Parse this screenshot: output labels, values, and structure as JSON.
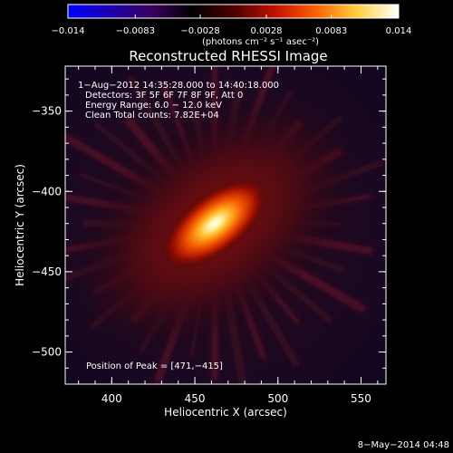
{
  "chart_data": {
    "type": "heatmap",
    "title": "Reconstructed RHESSI Image",
    "xlabel": "Heliocentric X (arcsec)",
    "ylabel": "Heliocentric Y (arcsec)",
    "xlim": [
      372,
      565
    ],
    "ylim": [
      -520,
      -322
    ],
    "x_ticks": [
      400,
      450,
      500,
      550
    ],
    "y_ticks": [
      -350,
      -400,
      -450,
      -500
    ],
    "x_tick_labels": [
      "400",
      "450",
      "500",
      "550"
    ],
    "y_tick_labels": [
      "−350",
      "−400",
      "−450",
      "−500"
    ],
    "colorbar": {
      "range": [
        -0.014,
        0.014
      ],
      "ticks": [
        -0.014,
        -0.0083,
        -0.0028,
        0.0028,
        0.0083,
        0.014
      ],
      "tick_labels": [
        "−0.014",
        "−0.0083",
        "−0.0028",
        "0.0028",
        "0.0083",
        "0.014"
      ],
      "label": "(photons cm⁻² s⁻¹ asec⁻²)",
      "colors": [
        "#0000ff",
        "#1a00b0",
        "#3b0060",
        "#000000",
        "#4a0000",
        "#c01000",
        "#ff6000",
        "#ffd040",
        "#ffffff"
      ]
    },
    "annotations": [
      "1−Aug−2012 14:35:28.000 to 14:40:18.000",
      "Detectors: 3F 5F 6F 7F 8F 9F, Att 0",
      "Energy Range: 6.0 − 12.0 keV",
      "Clean     Total counts: 7.82E+04"
    ],
    "peak_label": "Position of Peak = [471,−415]",
    "peak": {
      "x": 471,
      "y": -415,
      "value": 0.014
    },
    "source": {
      "center_x": 462,
      "center_y": -420,
      "major_arcsec": 62,
      "minor_arcsec": 30,
      "angle_deg": 38
    },
    "grid": false,
    "legend": "none"
  },
  "footer": {
    "timestamp": "8−May−2014 04:48"
  }
}
